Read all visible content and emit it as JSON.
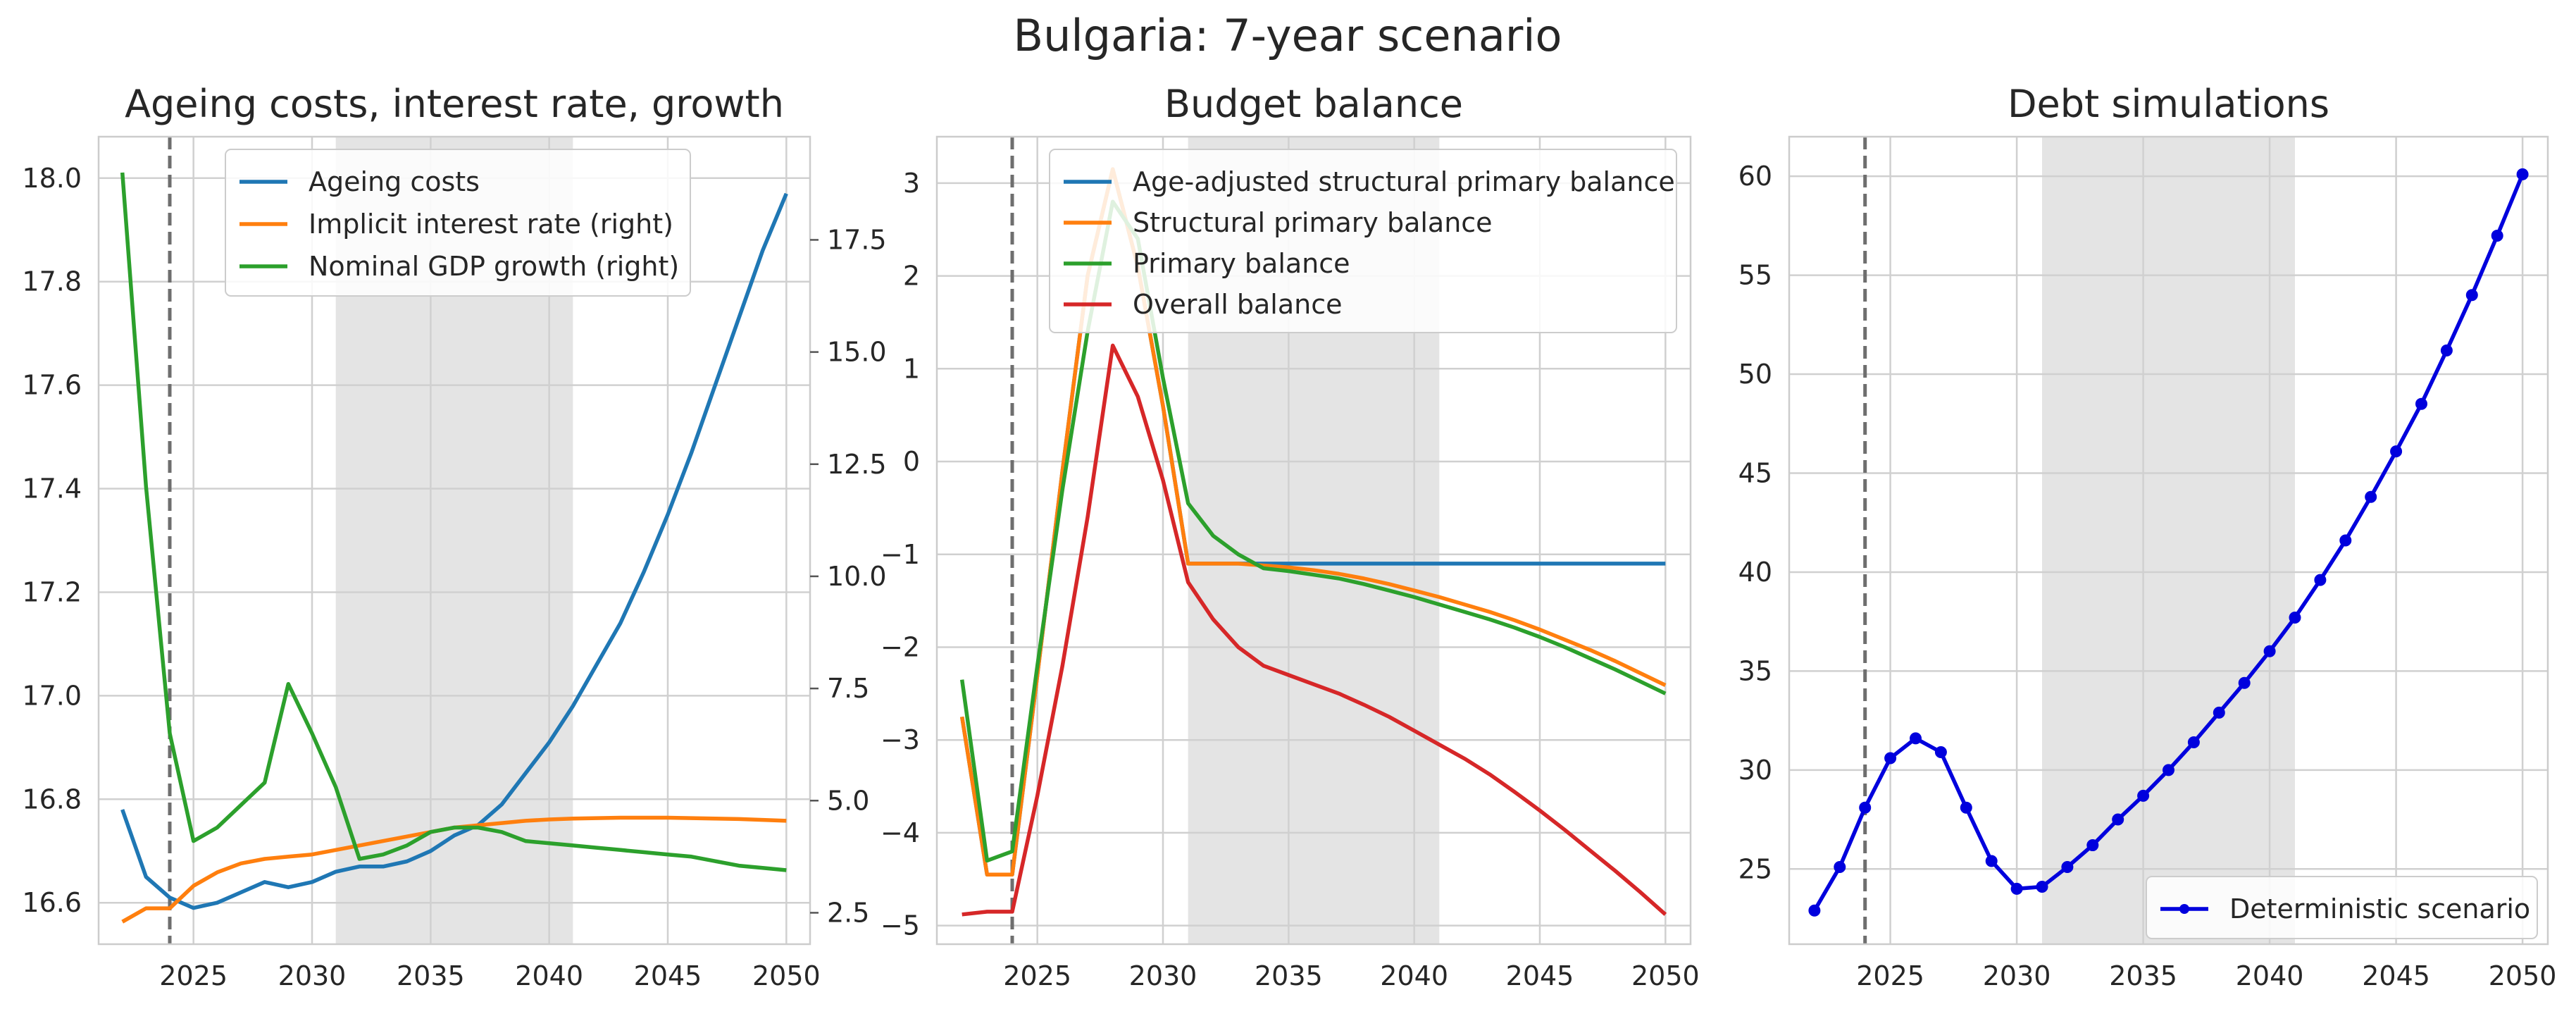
{
  "figure": {
    "title": "Bulgaria: 7-year scenario"
  },
  "colors": {
    "blue": "#1f77b4",
    "orange": "#ff7f0e",
    "green": "#2ca02c",
    "red": "#d62728",
    "debt": "#0000dd",
    "shade": "#e4e4e4",
    "grid": "#d0d0d0",
    "spine": "#cccccc",
    "vline": "#6e6e6e"
  },
  "chart_data": [
    {
      "type": "line",
      "title": "Ageing costs, interest rate, growth",
      "xlim": [
        2021,
        2051
      ],
      "ylim": [
        16.52,
        18.08
      ],
      "ylim_right": [
        1.8,
        19.8
      ],
      "xticks": [
        2025,
        2030,
        2035,
        2040,
        2045,
        2050
      ],
      "yticks": [
        16.6,
        16.8,
        17.0,
        17.2,
        17.4,
        17.6,
        17.8,
        18.0
      ],
      "ytick_labels": [
        "16.6",
        "16.8",
        "17.0",
        "17.2",
        "17.4",
        "17.6",
        "17.8",
        "18.0"
      ],
      "yticks_right": [
        2.5,
        5.0,
        7.5,
        10.0,
        12.5,
        15.0,
        17.5
      ],
      "ytick_labels_right": [
        "2.5",
        "5.0",
        "7.5",
        "10.0",
        "12.5",
        "15.0",
        "17.5"
      ],
      "shaded_x": [
        2031,
        2041
      ],
      "vline_x": 2024,
      "grid": true,
      "legend_position": "top-center",
      "x": [
        2022,
        2023,
        2024,
        2025,
        2026,
        2027,
        2028,
        2029,
        2030,
        2031,
        2032,
        2033,
        2034,
        2035,
        2036,
        2037,
        2038,
        2039,
        2040,
        2041,
        2042,
        2043,
        2044,
        2045,
        2046,
        2047,
        2048,
        2049,
        2050
      ],
      "series": [
        {
          "name": "Ageing costs",
          "color_key": "blue",
          "axis": "left",
          "values": [
            16.78,
            16.65,
            16.61,
            16.59,
            16.6,
            16.62,
            16.64,
            16.63,
            16.64,
            16.66,
            16.67,
            16.67,
            16.68,
            16.7,
            16.73,
            16.75,
            16.79,
            16.85,
            16.91,
            16.98,
            17.06,
            17.14,
            17.24,
            17.35,
            17.47,
            17.6,
            17.73,
            17.86,
            17.97
          ]
        },
        {
          "name": "Implicit interest rate (right)",
          "color_key": "orange",
          "axis": "right",
          "values": [
            2.3,
            2.6,
            2.6,
            3.1,
            3.4,
            3.6,
            3.7,
            3.75,
            3.8,
            3.9,
            4.0,
            4.1,
            4.2,
            4.3,
            4.4,
            4.45,
            4.5,
            4.55,
            4.58,
            4.6,
            4.61,
            4.62,
            4.62,
            4.62,
            4.61,
            4.6,
            4.59,
            4.57,
            4.55
          ]
        },
        {
          "name": "Nominal GDP growth (right)",
          "color_key": "green",
          "axis": "right",
          "values": [
            19.0,
            12.0,
            6.5,
            4.1,
            4.4,
            4.9,
            5.4,
            7.6,
            6.5,
            5.3,
            3.7,
            3.8,
            4.0,
            4.3,
            4.4,
            4.4,
            4.3,
            4.1,
            4.05,
            4.0,
            3.95,
            3.9,
            3.85,
            3.8,
            3.75,
            3.65,
            3.55,
            3.5,
            3.45
          ]
        }
      ]
    },
    {
      "type": "line",
      "title": "Budget balance",
      "xlim": [
        2021,
        2051
      ],
      "ylim": [
        -5.2,
        3.5
      ],
      "xticks": [
        2025,
        2030,
        2035,
        2040,
        2045,
        2050
      ],
      "yticks": [
        -5,
        -4,
        -3,
        -2,
        -1,
        0,
        1,
        2,
        3
      ],
      "ytick_labels": [
        "−5",
        "−4",
        "−3",
        "−2",
        "−1",
        "0",
        "1",
        "2",
        "3"
      ],
      "shaded_x": [
        2031,
        2041
      ],
      "vline_x": 2024,
      "grid": true,
      "legend_position": "top-right",
      "x": [
        2022,
        2023,
        2024,
        2025,
        2026,
        2027,
        2028,
        2029,
        2030,
        2031,
        2032,
        2033,
        2034,
        2035,
        2036,
        2037,
        2038,
        2039,
        2040,
        2041,
        2042,
        2043,
        2044,
        2045,
        2046,
        2047,
        2048,
        2049,
        2050
      ],
      "series": [
        {
          "name": "Age-adjusted structural primary balance",
          "color_key": "blue",
          "values": [
            -2.75,
            -4.45,
            -4.45,
            -2.3,
            -0.1,
            2.0,
            3.15,
            2.1,
            0.6,
            -1.1,
            -1.1,
            -1.1,
            -1.1,
            -1.1,
            -1.1,
            -1.1,
            -1.1,
            -1.1,
            -1.1,
            -1.1,
            -1.1,
            -1.1,
            -1.1,
            -1.1,
            -1.1,
            -1.1,
            -1.1,
            -1.1,
            -1.1
          ]
        },
        {
          "name": "Structural primary balance",
          "color_key": "orange",
          "values": [
            -2.75,
            -4.45,
            -4.45,
            -2.3,
            -0.1,
            2.0,
            3.15,
            2.1,
            0.6,
            -1.1,
            -1.1,
            -1.1,
            -1.12,
            -1.14,
            -1.17,
            -1.21,
            -1.26,
            -1.32,
            -1.39,
            -1.46,
            -1.54,
            -1.62,
            -1.71,
            -1.81,
            -1.92,
            -2.03,
            -2.15,
            -2.28,
            -2.41
          ]
        },
        {
          "name": "Primary balance",
          "color_key": "green",
          "values": [
            -2.35,
            -4.3,
            -4.2,
            -2.2,
            -0.3,
            1.4,
            2.8,
            2.4,
            0.9,
            -0.45,
            -0.8,
            -1.0,
            -1.15,
            -1.18,
            -1.22,
            -1.26,
            -1.32,
            -1.39,
            -1.46,
            -1.54,
            -1.62,
            -1.7,
            -1.79,
            -1.89,
            -2.0,
            -2.12,
            -2.24,
            -2.37,
            -2.5
          ]
        },
        {
          "name": "Overall balance",
          "color_key": "red",
          "values": [
            -4.88,
            -4.85,
            -4.85,
            -3.6,
            -2.2,
            -0.6,
            1.25,
            0.7,
            -0.2,
            -1.3,
            -1.7,
            -2.0,
            -2.2,
            -2.3,
            -2.4,
            -2.5,
            -2.62,
            -2.75,
            -2.9,
            -3.05,
            -3.2,
            -3.37,
            -3.56,
            -3.76,
            -3.97,
            -4.19,
            -4.41,
            -4.64,
            -4.88
          ]
        }
      ]
    },
    {
      "type": "line",
      "title": "Debt simulations",
      "xlim": [
        2021,
        2051
      ],
      "ylim": [
        21.2,
        62.0
      ],
      "xticks": [
        2025,
        2030,
        2035,
        2040,
        2045,
        2050
      ],
      "yticks": [
        25,
        30,
        35,
        40,
        45,
        50,
        55,
        60
      ],
      "ytick_labels": [
        "25",
        "30",
        "35",
        "40",
        "45",
        "50",
        "55",
        "60"
      ],
      "shaded_x": [
        2031,
        2041
      ],
      "vline_x": 2024,
      "grid": true,
      "legend_position": "bottom-right",
      "x": [
        2022,
        2023,
        2024,
        2025,
        2026,
        2027,
        2028,
        2029,
        2030,
        2031,
        2032,
        2033,
        2034,
        2035,
        2036,
        2037,
        2038,
        2039,
        2040,
        2041,
        2042,
        2043,
        2044,
        2045,
        2046,
        2047,
        2048,
        2049,
        2050
      ],
      "series": [
        {
          "name": "Deterministic scenario",
          "color_key": "debt",
          "markers": true,
          "values": [
            22.9,
            25.1,
            28.1,
            30.6,
            31.6,
            30.9,
            28.1,
            25.4,
            24.0,
            24.1,
            25.1,
            26.2,
            27.5,
            28.7,
            30.0,
            31.4,
            32.9,
            34.4,
            36.0,
            37.7,
            39.6,
            41.6,
            43.8,
            46.1,
            48.5,
            51.2,
            54.0,
            57.0,
            60.1
          ]
        }
      ]
    }
  ]
}
